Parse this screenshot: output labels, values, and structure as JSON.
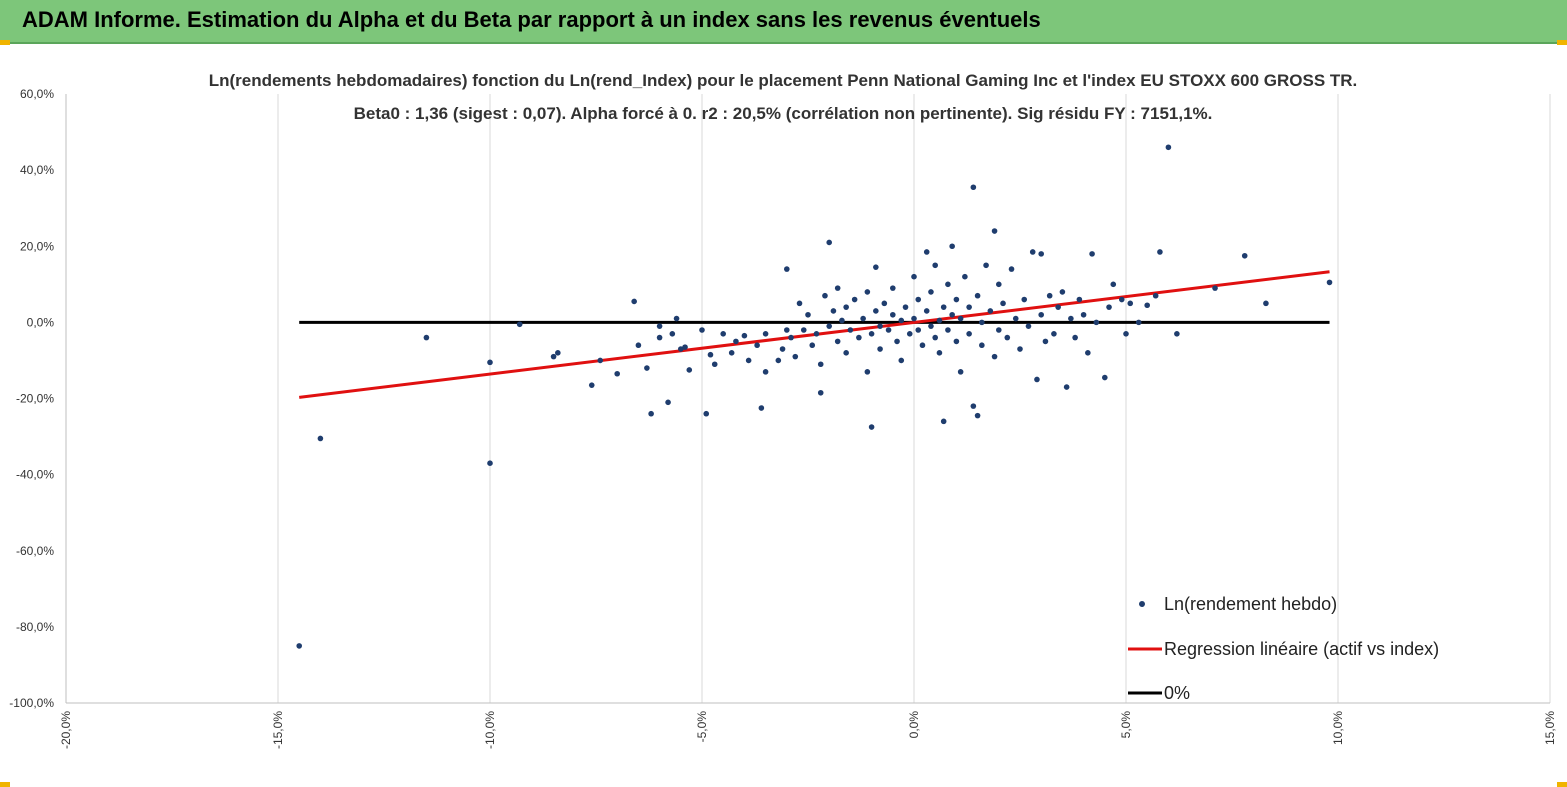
{
  "banner": {
    "title": "ADAM Informe. Estimation du Alpha et du Beta par rapport à un index sans les revenus éventuels"
  },
  "colors": {
    "banner": "#7dc67a",
    "points": "#1f3d6e",
    "regression": "#e01010",
    "zero_line": "#000000"
  },
  "chart_data": {
    "type": "scatter",
    "title": "Ln(rendements hebdomadaires) fonction du Ln(rend_Index) pour le placement Penn National Gaming Inc et l'index EU STOXX 600 GROSS TR.",
    "subtitle": "Beta0 : 1,36 (sigest : 0,07).  Alpha forcé à 0. r2 : 20,5% (corrélation non pertinente). Sig résidu FY : 7151,1%.",
    "xlim": [
      -20,
      15
    ],
    "ylim": [
      -100,
      60
    ],
    "x_ticks": [
      "-20,0%",
      "-15,0%",
      "-10,0%",
      "-5,0%",
      "0,0%",
      "5,0%",
      "10,0%",
      "15,0%"
    ],
    "y_ticks": [
      "60,0%",
      "40,0%",
      "20,0%",
      "0,0%",
      "-20,0%",
      "-40,0%",
      "-60,0%",
      "-80,0%",
      "-100,0%"
    ],
    "x_tick_values": [
      -20,
      -15,
      -10,
      -5,
      0,
      5,
      10,
      15
    ],
    "y_tick_values": [
      60,
      40,
      20,
      0,
      -20,
      -40,
      -60,
      -80,
      -100
    ],
    "grid": "vertical",
    "legend_position": "bottom-right",
    "series": [
      {
        "name": "Ln(rendement hebdo)",
        "kind": "scatter",
        "points": [
          [
            -14.5,
            -85
          ],
          [
            -14,
            -30.5
          ],
          [
            -11.5,
            -4
          ],
          [
            -10,
            -37
          ],
          [
            -10,
            -10.5
          ],
          [
            -9.3,
            -0.5
          ],
          [
            -8.5,
            -9
          ],
          [
            -8.4,
            -8
          ],
          [
            -7.6,
            -16.5
          ],
          [
            -7.4,
            -10
          ],
          [
            -7,
            -13.5
          ],
          [
            -6.6,
            5.5
          ],
          [
            -6.2,
            -24
          ],
          [
            -6.3,
            -12
          ],
          [
            -6.5,
            -6
          ],
          [
            -6,
            -4
          ],
          [
            -6,
            -1
          ],
          [
            -5.8,
            -21
          ],
          [
            -5.6,
            1
          ],
          [
            -5.7,
            -3
          ],
          [
            -5.5,
            -7
          ],
          [
            -5.3,
            -12.5
          ],
          [
            -5.4,
            -6.5
          ],
          [
            -5,
            -2
          ],
          [
            -4.8,
            -8.5
          ],
          [
            -4.9,
            -24
          ],
          [
            -4.7,
            -11
          ],
          [
            -4.5,
            -3
          ],
          [
            -4.3,
            -8
          ],
          [
            -4.2,
            -5
          ],
          [
            -4,
            -3.5
          ],
          [
            -3.9,
            -10
          ],
          [
            -3.7,
            -6
          ],
          [
            -3.6,
            -22.5
          ],
          [
            -3.5,
            -13
          ],
          [
            -3.5,
            -3
          ],
          [
            -3.2,
            -10
          ],
          [
            -3.1,
            -7
          ],
          [
            -3,
            -2
          ],
          [
            -3,
            14
          ],
          [
            -2.9,
            -4
          ],
          [
            -2.8,
            -9
          ],
          [
            -2.7,
            5
          ],
          [
            -2.6,
            -2
          ],
          [
            -2.5,
            2
          ],
          [
            -2.4,
            -6
          ],
          [
            -2.3,
            -3
          ],
          [
            -2.2,
            -11
          ],
          [
            -2.2,
            -18.5
          ],
          [
            -2.1,
            7
          ],
          [
            -2,
            -1
          ],
          [
            -2,
            21
          ],
          [
            -1.9,
            3
          ],
          [
            -1.8,
            -5
          ],
          [
            -1.8,
            9
          ],
          [
            -1.7,
            0.5
          ],
          [
            -1.6,
            -8
          ],
          [
            -1.6,
            4
          ],
          [
            -1.5,
            -2
          ],
          [
            -1.4,
            6
          ],
          [
            -1.3,
            -4
          ],
          [
            -1.2,
            1
          ],
          [
            -1.1,
            -13
          ],
          [
            -1.1,
            8
          ],
          [
            -1,
            -27.5
          ],
          [
            -1,
            -3
          ],
          [
            -0.9,
            3
          ],
          [
            -0.9,
            14.5
          ],
          [
            -0.8,
            -7
          ],
          [
            -0.8,
            -1
          ],
          [
            -0.7,
            5
          ],
          [
            -0.6,
            -2
          ],
          [
            -0.5,
            2
          ],
          [
            -0.5,
            9
          ],
          [
            -0.4,
            -5
          ],
          [
            -0.3,
            0.5
          ],
          [
            -0.3,
            -10
          ],
          [
            -0.2,
            4
          ],
          [
            -0.1,
            -3
          ],
          [
            0,
            1
          ],
          [
            0,
            12
          ],
          [
            0.1,
            -2
          ],
          [
            0.1,
            6
          ],
          [
            0.2,
            -6
          ],
          [
            0.3,
            3
          ],
          [
            0.3,
            18.5
          ],
          [
            0.4,
            -1
          ],
          [
            0.4,
            8
          ],
          [
            0.5,
            -4
          ],
          [
            0.5,
            15
          ],
          [
            0.6,
            0.5
          ],
          [
            0.6,
            -8
          ],
          [
            0.7,
            4
          ],
          [
            0.7,
            -26
          ],
          [
            0.8,
            -2
          ],
          [
            0.8,
            10
          ],
          [
            0.9,
            2
          ],
          [
            0.9,
            20
          ],
          [
            1,
            -5
          ],
          [
            1,
            6
          ],
          [
            1.1,
            -13
          ],
          [
            1.1,
            1
          ],
          [
            1.2,
            12
          ],
          [
            1.3,
            -3
          ],
          [
            1.3,
            4
          ],
          [
            1.4,
            -22
          ],
          [
            1.4,
            35.5
          ],
          [
            1.5,
            -24.5
          ],
          [
            1.5,
            7
          ],
          [
            1.6,
            0
          ],
          [
            1.6,
            -6
          ],
          [
            1.7,
            15
          ],
          [
            1.8,
            3
          ],
          [
            1.9,
            -9
          ],
          [
            1.9,
            24
          ],
          [
            2,
            -2
          ],
          [
            2,
            10
          ],
          [
            2.1,
            5
          ],
          [
            2.2,
            -4
          ],
          [
            2.3,
            14
          ],
          [
            2.4,
            1
          ],
          [
            2.5,
            -7
          ],
          [
            2.6,
            6
          ],
          [
            2.7,
            -1
          ],
          [
            2.8,
            18.5
          ],
          [
            2.9,
            -15
          ],
          [
            3,
            2
          ],
          [
            3,
            18
          ],
          [
            3.1,
            -5
          ],
          [
            3.2,
            7
          ],
          [
            3.3,
            -3
          ],
          [
            3.4,
            4
          ],
          [
            3.5,
            8
          ],
          [
            3.6,
            -17
          ],
          [
            3.7,
            1
          ],
          [
            3.8,
            -4
          ],
          [
            3.9,
            6
          ],
          [
            4,
            2
          ],
          [
            4.1,
            -8
          ],
          [
            4.2,
            18
          ],
          [
            4.3,
            0
          ],
          [
            4.5,
            -14.5
          ],
          [
            4.6,
            4
          ],
          [
            4.7,
            10
          ],
          [
            4.9,
            6
          ],
          [
            5,
            -3
          ],
          [
            5.1,
            5
          ],
          [
            5.3,
            0
          ],
          [
            5.5,
            4.5
          ],
          [
            5.7,
            7
          ],
          [
            5.8,
            18.5
          ],
          [
            6,
            46
          ],
          [
            6.2,
            -3
          ],
          [
            7.1,
            9
          ],
          [
            7.8,
            17.5
          ],
          [
            8.3,
            5
          ],
          [
            9.8,
            10.5
          ]
        ]
      },
      {
        "name": "Regression linéaire (actif vs index)",
        "kind": "line",
        "x": [
          -14.5,
          9.8
        ],
        "y": [
          -19.7,
          13.3
        ]
      },
      {
        "name": "0%",
        "kind": "line",
        "x": [
          -14.5,
          9.8
        ],
        "y": [
          0,
          0
        ]
      }
    ]
  }
}
